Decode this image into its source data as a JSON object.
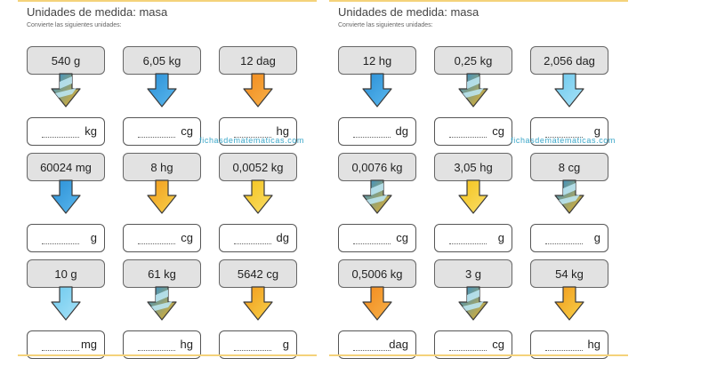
{
  "sheets": [
    {
      "title": "Unidades de medida: masa",
      "subtitle": "Convierte las siguientes unidades:",
      "watermark": "fichasdematematicas.com",
      "cards": [
        {
          "value": "540 g",
          "unit": "kg",
          "arrow": "mix"
        },
        {
          "value": "6,05 kg",
          "unit": "cg",
          "arrow": "blue"
        },
        {
          "value": "12 dag",
          "unit": "hg",
          "arrow": "orange"
        },
        {
          "value": "60024 mg",
          "unit": "g",
          "arrow": "blue"
        },
        {
          "value": "8 hg",
          "unit": "cg",
          "arrow": "orange-yellow"
        },
        {
          "value": "0,0052 kg",
          "unit": "dg",
          "arrow": "yellow"
        },
        {
          "value": "10 g",
          "unit": "mg",
          "arrow": "light-blue"
        },
        {
          "value": "61 kg",
          "unit": "hg",
          "arrow": "mix"
        },
        {
          "value": "5642 cg",
          "unit": "g",
          "arrow": "orange-yellow"
        }
      ]
    },
    {
      "title": "Unidades de medida: masa",
      "subtitle": "Convierte las siguientes unidades:",
      "watermark": "fichasdematematicas.com",
      "cards": [
        {
          "value": "12 hg",
          "unit": "dg",
          "arrow": "blue"
        },
        {
          "value": "0,25 kg",
          "unit": "cg",
          "arrow": "mix"
        },
        {
          "value": "2,056 dag",
          "unit": "g",
          "arrow": "light-blue"
        },
        {
          "value": "0,0076 kg",
          "unit": "cg",
          "arrow": "mix"
        },
        {
          "value": "3,05 hg",
          "unit": "g",
          "arrow": "yellow"
        },
        {
          "value": "8 cg",
          "unit": "g",
          "arrow": "mix"
        },
        {
          "value": "0,5006 kg",
          "unit": "dag",
          "arrow": "orange"
        },
        {
          "value": "3 g",
          "unit": "cg",
          "arrow": "mix"
        },
        {
          "value": "54 kg",
          "unit": "hg",
          "arrow": "orange-yellow"
        }
      ]
    }
  ]
}
